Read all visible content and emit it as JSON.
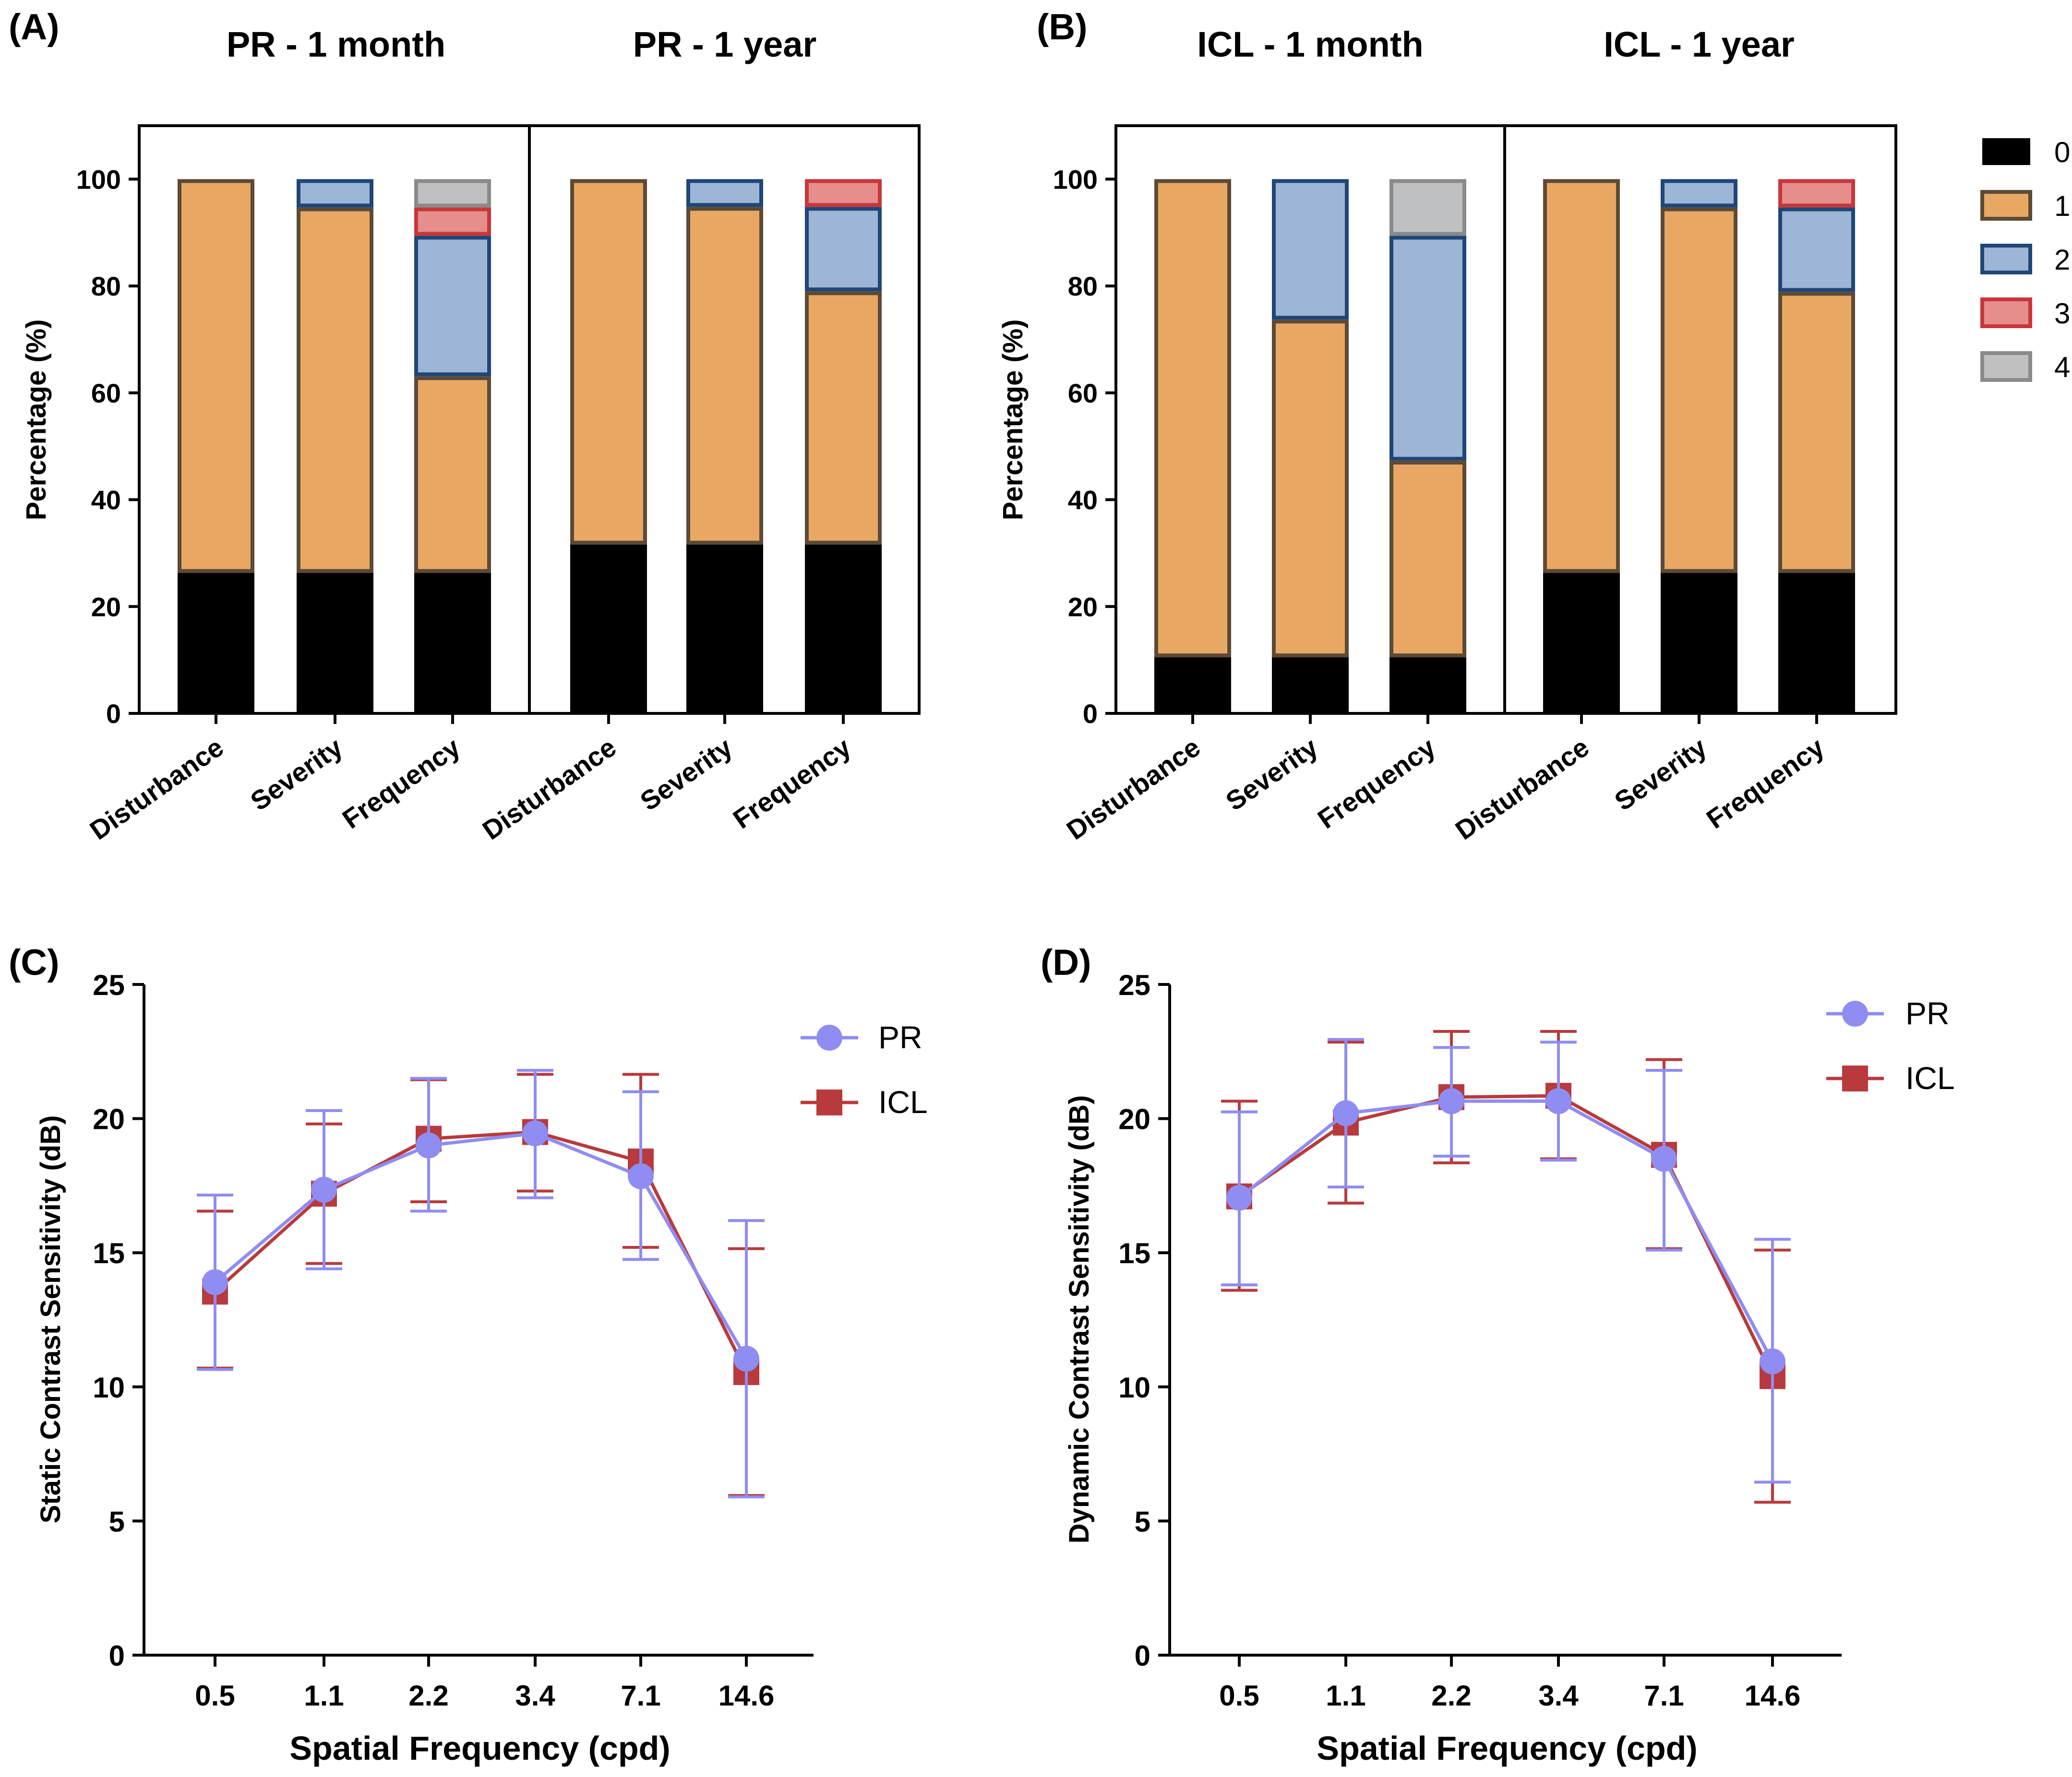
{
  "colors": {
    "level_fills": [
      "#000000",
      "#E8A864",
      "#9DB6D6",
      "#E58E8B",
      "#BFC0C1"
    ],
    "level_strokes": [
      "#000000",
      "#5C4A35",
      "#1F4677",
      "#C9363A",
      "#8A8A8A"
    ],
    "pr_line": "#8F8CF2",
    "icl_line": "#B83A3C"
  },
  "legend_levels": [
    "0",
    "1",
    "2",
    "3",
    "4"
  ],
  "chart_data": [
    {
      "type": "bar",
      "stacked": true,
      "panel_label": "(A)",
      "ylabel": "Percentage (%)",
      "ylim": [
        0,
        110
      ],
      "yticks": [
        "0",
        "20",
        "40",
        "60",
        "80",
        "100"
      ],
      "subplots": [
        {
          "title": "PR - 1 month",
          "categories": [
            "Disturbance",
            "Severity",
            "Frequency"
          ],
          "series": [
            {
              "name": "0",
              "values": [
                26.3,
                26.3,
                26.3
              ]
            },
            {
              "name": "1",
              "values": [
                73.7,
                68.4,
                36.8
              ]
            },
            {
              "name": "2",
              "values": [
                0,
                5.3,
                26.3
              ]
            },
            {
              "name": "3",
              "values": [
                0,
                0,
                5.3
              ]
            },
            {
              "name": "4",
              "values": [
                0,
                0,
                5.3
              ]
            }
          ]
        },
        {
          "title": "PR - 1 year",
          "categories": [
            "Disturbance",
            "Severity",
            "Frequency"
          ],
          "series": [
            {
              "name": "0",
              "values": [
                31.6,
                31.6,
                31.6
              ]
            },
            {
              "name": "1",
              "values": [
                68.4,
                63.2,
                47.4
              ]
            },
            {
              "name": "2",
              "values": [
                0,
                5.2,
                15.8
              ]
            },
            {
              "name": "3",
              "values": [
                0,
                0,
                5.2
              ]
            },
            {
              "name": "4",
              "values": [
                0,
                0,
                0
              ]
            }
          ]
        }
      ]
    },
    {
      "type": "bar",
      "stacked": true,
      "panel_label": "(B)",
      "ylabel": "Percentage (%)",
      "ylim": [
        0,
        110
      ],
      "yticks": [
        "0",
        "20",
        "40",
        "60",
        "80",
        "100"
      ],
      "subplots": [
        {
          "title": "ICL - 1 month",
          "categories": [
            "Disturbance",
            "Severity",
            "Frequency"
          ],
          "series": [
            {
              "name": "0",
              "values": [
                10.5,
                10.5,
                10.5
              ]
            },
            {
              "name": "1",
              "values": [
                89.5,
                63.2,
                36.8
              ]
            },
            {
              "name": "2",
              "values": [
                0,
                26.3,
                42.1
              ]
            },
            {
              "name": "3",
              "values": [
                0,
                0,
                0
              ]
            },
            {
              "name": "4",
              "values": [
                0,
                0,
                10.6
              ]
            }
          ]
        },
        {
          "title": "ICL - 1 year",
          "categories": [
            "Disturbance",
            "Severity",
            "Frequency"
          ],
          "series": [
            {
              "name": "0",
              "values": [
                26.3,
                26.3,
                26.3
              ]
            },
            {
              "name": "1",
              "values": [
                73.7,
                68.4,
                52.6
              ]
            },
            {
              "name": "2",
              "values": [
                0,
                5.3,
                15.8
              ]
            },
            {
              "name": "3",
              "values": [
                0,
                0,
                5.3
              ]
            },
            {
              "name": "4",
              "values": [
                0,
                0,
                0
              ]
            }
          ]
        }
      ]
    },
    {
      "type": "line",
      "panel_label": "(C)",
      "xlabel": "Spatial Frequency (cpd)",
      "ylabel": "Static Contrast Sensitivity (dB)",
      "categories": [
        "0.5",
        "1.1",
        "2.2",
        "3.4",
        "7.1",
        "14.6"
      ],
      "ylim": [
        0,
        25
      ],
      "yticks": [
        "0",
        "5",
        "10",
        "15",
        "20",
        "25"
      ],
      "series": [
        {
          "name": "PR",
          "marker": "circle",
          "values": [
            13.9,
            17.35,
            19.0,
            19.45,
            17.85,
            11.05
          ],
          "err_low": [
            10.65,
            14.4,
            16.55,
            17.05,
            14.75,
            5.9
          ],
          "err_high": [
            17.15,
            20.3,
            21.5,
            21.8,
            21.0,
            16.2
          ]
        },
        {
          "name": "ICL",
          "marker": "square",
          "values": [
            13.55,
            17.2,
            19.25,
            19.5,
            18.4,
            10.55
          ],
          "err_low": [
            10.7,
            14.6,
            16.9,
            17.3,
            15.2,
            5.95
          ],
          "err_high": [
            16.55,
            19.8,
            21.45,
            21.65,
            21.65,
            15.15
          ]
        }
      ]
    },
    {
      "type": "line",
      "panel_label": "(D)",
      "xlabel": "Spatial Frequency (cpd)",
      "ylabel": "Dynamic Contrast Sensitivity (dB)",
      "categories": [
        "0.5",
        "1.1",
        "2.2",
        "3.4",
        "7.1",
        "14.6"
      ],
      "ylim": [
        0,
        25
      ],
      "yticks": [
        "0",
        "5",
        "10",
        "15",
        "20",
        "25"
      ],
      "series": [
        {
          "name": "PR",
          "marker": "circle",
          "values": [
            17.05,
            20.2,
            20.65,
            20.65,
            18.5,
            10.95
          ],
          "err_low": [
            13.8,
            17.45,
            18.6,
            18.45,
            15.1,
            6.45
          ],
          "err_high": [
            20.25,
            22.95,
            22.65,
            22.85,
            21.8,
            15.5
          ]
        },
        {
          "name": "ICL",
          "marker": "square",
          "values": [
            17.1,
            19.85,
            20.8,
            20.85,
            18.65,
            10.4
          ],
          "err_low": [
            13.6,
            16.85,
            18.35,
            18.5,
            15.15,
            5.7
          ],
          "err_high": [
            20.65,
            22.85,
            23.25,
            23.25,
            22.2,
            15.1
          ]
        }
      ]
    }
  ]
}
